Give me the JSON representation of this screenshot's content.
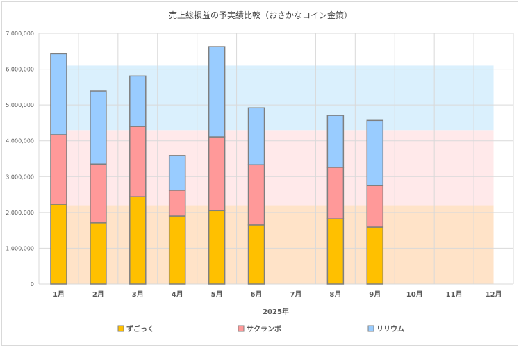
{
  "chart_data": {
    "type": "bar",
    "stacked": true,
    "title": "売上総損益の予実績比較（おさかなコイン金策）",
    "xlabel": "2025年",
    "ylabel": "",
    "ylim": [
      0,
      7000000
    ],
    "yticks": [
      0,
      1000000,
      2000000,
      3000000,
      4000000,
      5000000,
      6000000,
      7000000
    ],
    "ytick_labels": [
      "0",
      "1,000,000",
      "2,000,000",
      "3,000,000",
      "4,000,000",
      "5,000,000",
      "6,000,000",
      "7,000,000"
    ],
    "grid": true,
    "legend_position": "bottom",
    "categories": [
      "1月",
      "2月",
      "3月",
      "4月",
      "5月",
      "6月",
      "7月",
      "8月",
      "9月",
      "10月",
      "11月",
      "12月"
    ],
    "series": [
      {
        "name": "ずごっく",
        "color": "#ffc000",
        "values": [
          2230000,
          1710000,
          2440000,
          1900000,
          2050000,
          1650000,
          null,
          1820000,
          1590000,
          null,
          null,
          null
        ]
      },
      {
        "name": "サクランボ",
        "color": "#ff9999",
        "values": [
          1940000,
          1640000,
          1960000,
          720000,
          2060000,
          1680000,
          null,
          1440000,
          1160000,
          null,
          null,
          null
        ]
      },
      {
        "name": "リリウム",
        "color": "#99ccff",
        "values": [
          2260000,
          2040000,
          1410000,
          970000,
          2520000,
          1590000,
          null,
          1450000,
          1820000,
          null,
          null,
          null
        ]
      }
    ],
    "background_bands": {
      "type": "area",
      "stacked": true,
      "colors": [
        "#ffe3c8",
        "#ffe9ea",
        "#daf0fd"
      ],
      "values": [
        2200000,
        2100000,
        1800000
      ]
    }
  }
}
